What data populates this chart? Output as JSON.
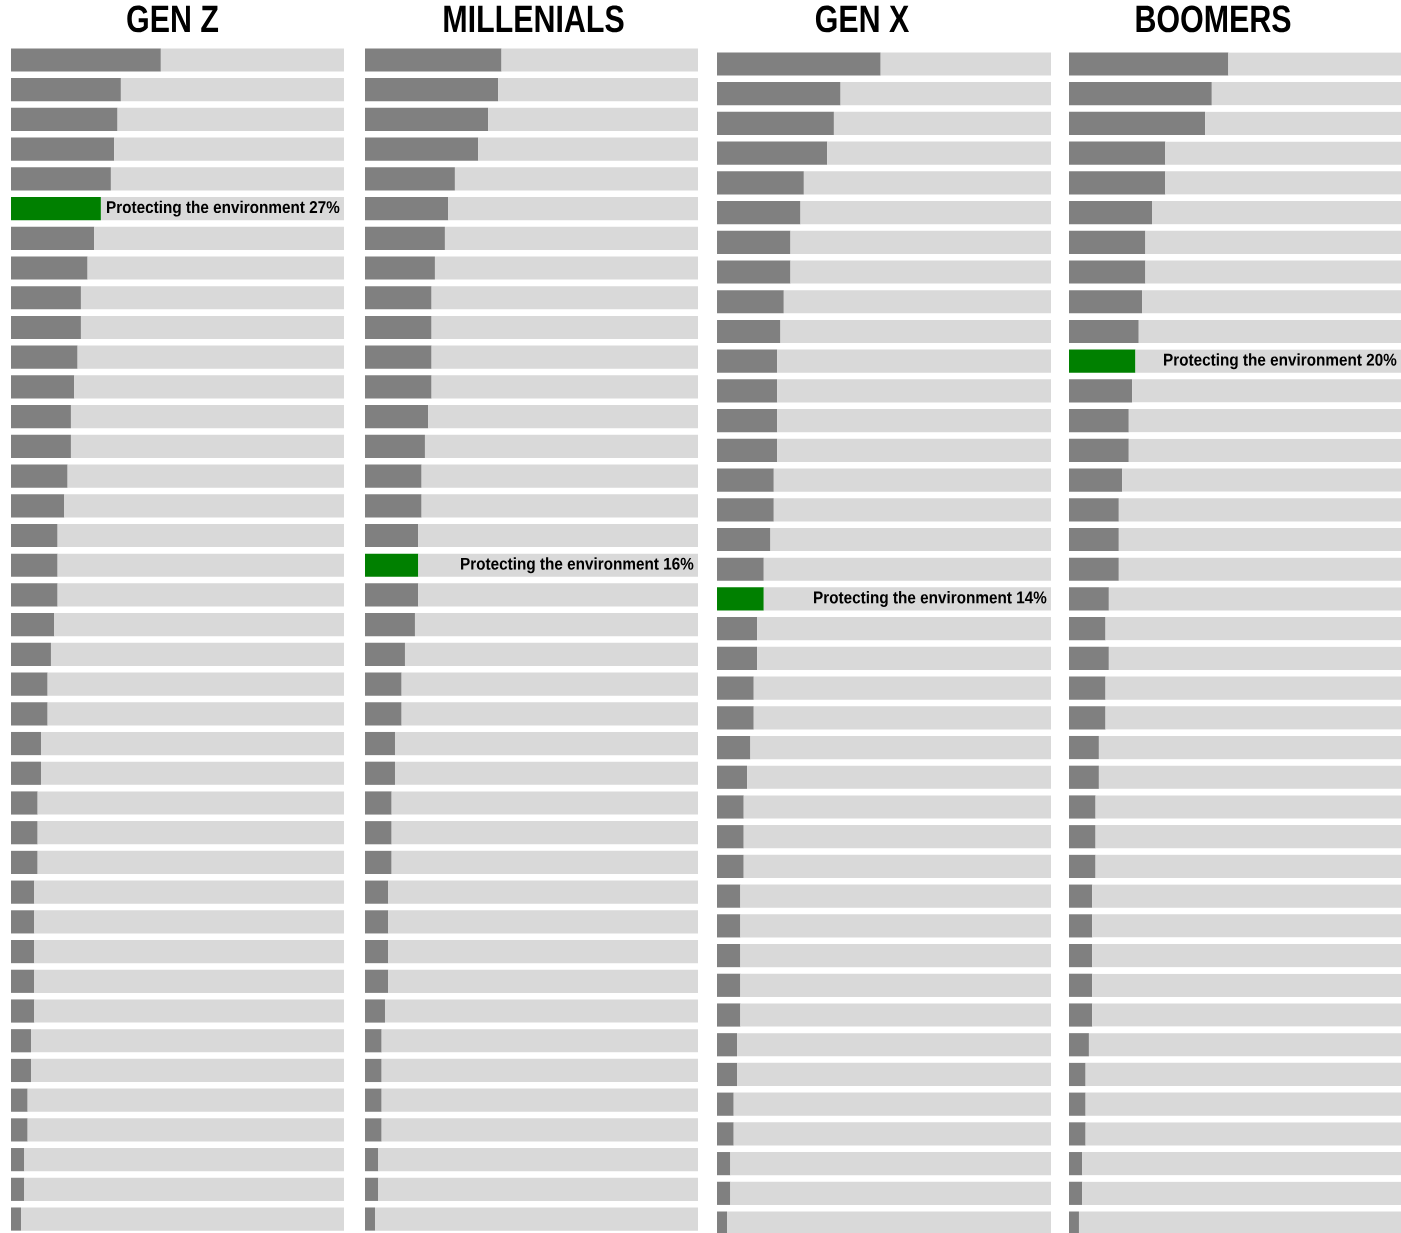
{
  "chart_data": [
    {
      "type": "bar",
      "orientation": "horizontal",
      "stacked": true,
      "title": "GEN Z",
      "xlim": [
        0,
        100
      ],
      "tick_labels": false,
      "categories": [
        null,
        null,
        null,
        null,
        null,
        null,
        null,
        null,
        null,
        null,
        null,
        null,
        null,
        null,
        null,
        null,
        null,
        null,
        null,
        null,
        null,
        null,
        null,
        null,
        null,
        null,
        null,
        null,
        null,
        null,
        null,
        null,
        null,
        null,
        null,
        null,
        null,
        null,
        null,
        null
      ],
      "series": [
        {
          "colors": [
            "#808080",
            "#808080",
            "#808080",
            "#808080",
            "#808080",
            "#008000",
            "#808080",
            "#808080",
            "#808080",
            "#808080",
            "#808080",
            "#808080",
            "#808080",
            "#808080",
            "#808080",
            "#808080",
            "#808080",
            "#808080",
            "#808080",
            "#808080",
            "#808080",
            "#808080",
            "#808080",
            "#808080",
            "#808080",
            "#808080",
            "#808080",
            "#808080",
            "#808080",
            "#808080",
            "#808080",
            "#808080",
            "#808080",
            "#808080",
            "#808080",
            "#808080",
            "#808080",
            "#808080",
            "#808080",
            "#808080"
          ],
          "values": [
            45,
            33,
            32,
            31,
            30,
            27,
            25,
            23,
            21,
            21,
            20,
            19,
            18,
            18,
            17,
            16,
            14,
            14,
            14,
            13,
            12,
            11,
            11,
            9,
            9,
            8,
            8,
            8,
            7,
            7,
            7,
            7,
            7,
            6,
            6,
            5,
            5,
            4,
            4,
            3
          ],
          "value_labels": [
            null,
            null,
            null,
            null,
            null,
            "Protecting the environment 27%",
            null,
            null,
            null,
            null,
            null,
            null,
            null,
            null,
            null,
            null,
            null,
            null,
            null,
            null,
            null,
            null,
            null,
            null,
            null,
            null,
            null,
            null,
            null,
            null,
            null,
            null,
            null,
            null,
            null,
            null,
            null,
            null,
            null,
            null
          ]
        },
        {
          "color": "#d9d9d9",
          "values": [
            55,
            67,
            68,
            69,
            70,
            73,
            75,
            77,
            79,
            79,
            80,
            81,
            82,
            82,
            83,
            84,
            86,
            86,
            86,
            87,
            88,
            89,
            89,
            91,
            91,
            92,
            92,
            92,
            93,
            93,
            93,
            93,
            93,
            94,
            94,
            95,
            95,
            96,
            96,
            97
          ]
        }
      ]
    },
    {
      "type": "bar",
      "orientation": "horizontal",
      "stacked": true,
      "title": "MILLENIALS",
      "xlim": [
        0,
        100
      ],
      "tick_labels": false,
      "categories": [
        null,
        null,
        null,
        null,
        null,
        null,
        null,
        null,
        null,
        null,
        null,
        null,
        null,
        null,
        null,
        null,
        null,
        null,
        null,
        null,
        null,
        null,
        null,
        null,
        null,
        null,
        null,
        null,
        null,
        null,
        null,
        null,
        null,
        null,
        null,
        null,
        null,
        null,
        null,
        null
      ],
      "series": [
        {
          "colors": [
            "#808080",
            "#808080",
            "#808080",
            "#808080",
            "#808080",
            "#808080",
            "#808080",
            "#808080",
            "#808080",
            "#808080",
            "#808080",
            "#808080",
            "#808080",
            "#808080",
            "#808080",
            "#808080",
            "#808080",
            "#008000",
            "#808080",
            "#808080",
            "#808080",
            "#808080",
            "#808080",
            "#808080",
            "#808080",
            "#808080",
            "#808080",
            "#808080",
            "#808080",
            "#808080",
            "#808080",
            "#808080",
            "#808080",
            "#808080",
            "#808080",
            "#808080",
            "#808080",
            "#808080",
            "#808080",
            "#808080"
          ],
          "values": [
            41,
            40,
            37,
            34,
            27,
            25,
            24,
            21,
            20,
            20,
            20,
            20,
            19,
            18,
            17,
            17,
            16,
            16,
            16,
            15,
            12,
            11,
            11,
            9,
            9,
            8,
            8,
            8,
            7,
            7,
            7,
            7,
            6,
            5,
            5,
            5,
            5,
            4,
            4,
            3
          ],
          "value_labels": [
            null,
            null,
            null,
            null,
            null,
            null,
            null,
            null,
            null,
            null,
            null,
            null,
            null,
            null,
            null,
            null,
            null,
            "Protecting the environment 16%",
            null,
            null,
            null,
            null,
            null,
            null,
            null,
            null,
            null,
            null,
            null,
            null,
            null,
            null,
            null,
            null,
            null,
            null,
            null,
            null,
            null,
            null
          ]
        },
        {
          "color": "#d9d9d9",
          "values": [
            59,
            60,
            63,
            66,
            73,
            75,
            76,
            79,
            80,
            80,
            80,
            80,
            81,
            82,
            83,
            83,
            84,
            84,
            84,
            85,
            88,
            89,
            89,
            91,
            91,
            92,
            92,
            92,
            93,
            93,
            93,
            93,
            94,
            95,
            95,
            95,
            95,
            96,
            96,
            97
          ]
        }
      ]
    },
    {
      "type": "bar",
      "orientation": "horizontal",
      "stacked": true,
      "title": "GEN X",
      "xlim": [
        0,
        100
      ],
      "tick_labels": false,
      "categories": [
        null,
        null,
        null,
        null,
        null,
        null,
        null,
        null,
        null,
        null,
        null,
        null,
        null,
        null,
        null,
        null,
        null,
        null,
        null,
        null,
        null,
        null,
        null,
        null,
        null,
        null,
        null,
        null,
        null,
        null,
        null,
        null,
        null,
        null,
        null,
        null,
        null,
        null,
        null,
        null
      ],
      "series": [
        {
          "colors": [
            "#808080",
            "#808080",
            "#808080",
            "#808080",
            "#808080",
            "#808080",
            "#808080",
            "#808080",
            "#808080",
            "#808080",
            "#808080",
            "#808080",
            "#808080",
            "#808080",
            "#808080",
            "#808080",
            "#808080",
            "#808080",
            "#008000",
            "#808080",
            "#808080",
            "#808080",
            "#808080",
            "#808080",
            "#808080",
            "#808080",
            "#808080",
            "#808080",
            "#808080",
            "#808080",
            "#808080",
            "#808080",
            "#808080",
            "#808080",
            "#808080",
            "#808080",
            "#808080",
            "#808080",
            "#808080",
            "#808080"
          ],
          "values": [
            49,
            37,
            35,
            33,
            26,
            25,
            22,
            22,
            20,
            19,
            18,
            18,
            18,
            18,
            17,
            17,
            16,
            14,
            14,
            12,
            12,
            11,
            11,
            10,
            9,
            8,
            8,
            8,
            7,
            7,
            7,
            7,
            7,
            6,
            6,
            5,
            5,
            4,
            4,
            3
          ],
          "value_labels": [
            null,
            null,
            null,
            null,
            null,
            null,
            null,
            null,
            null,
            null,
            null,
            null,
            null,
            null,
            null,
            null,
            null,
            null,
            "Protecting the environment 14%",
            null,
            null,
            null,
            null,
            null,
            null,
            null,
            null,
            null,
            null,
            null,
            null,
            null,
            null,
            null,
            null,
            null,
            null,
            null,
            null,
            null
          ]
        },
        {
          "color": "#d9d9d9",
          "values": [
            51,
            63,
            65,
            67,
            74,
            75,
            78,
            78,
            80,
            81,
            82,
            82,
            82,
            82,
            83,
            83,
            84,
            86,
            86,
            88,
            88,
            89,
            89,
            90,
            91,
            92,
            92,
            92,
            93,
            93,
            93,
            93,
            93,
            94,
            94,
            95,
            95,
            96,
            96,
            97
          ]
        }
      ]
    },
    {
      "type": "bar",
      "orientation": "horizontal",
      "stacked": true,
      "title": "BOOMERS",
      "xlim": [
        0,
        100
      ],
      "tick_labels": false,
      "categories": [
        null,
        null,
        null,
        null,
        null,
        null,
        null,
        null,
        null,
        null,
        null,
        null,
        null,
        null,
        null,
        null,
        null,
        null,
        null,
        null,
        null,
        null,
        null,
        null,
        null,
        null,
        null,
        null,
        null,
        null,
        null,
        null,
        null,
        null,
        null,
        null,
        null,
        null,
        null,
        null
      ],
      "series": [
        {
          "colors": [
            "#808080",
            "#808080",
            "#808080",
            "#808080",
            "#808080",
            "#808080",
            "#808080",
            "#808080",
            "#808080",
            "#808080",
            "#008000",
            "#808080",
            "#808080",
            "#808080",
            "#808080",
            "#808080",
            "#808080",
            "#808080",
            "#808080",
            "#808080",
            "#808080",
            "#808080",
            "#808080",
            "#808080",
            "#808080",
            "#808080",
            "#808080",
            "#808080",
            "#808080",
            "#808080",
            "#808080",
            "#808080",
            "#808080",
            "#808080",
            "#808080",
            "#808080",
            "#808080",
            "#808080",
            "#808080",
            "#808080"
          ],
          "values": [
            48,
            43,
            41,
            29,
            29,
            25,
            23,
            23,
            22,
            21,
            20,
            19,
            18,
            18,
            16,
            15,
            15,
            15,
            12,
            11,
            12,
            11,
            11,
            9,
            9,
            8,
            8,
            8,
            7,
            7,
            7,
            7,
            7,
            6,
            5,
            5,
            5,
            4,
            4,
            3
          ],
          "value_labels": [
            null,
            null,
            null,
            null,
            null,
            null,
            null,
            null,
            null,
            null,
            "Protecting the environment 20%",
            null,
            null,
            null,
            null,
            null,
            null,
            null,
            null,
            null,
            null,
            null,
            null,
            null,
            null,
            null,
            null,
            null,
            null,
            null,
            null,
            null,
            null,
            null,
            null,
            null,
            null,
            null,
            null,
            null
          ]
        },
        {
          "color": "#d9d9d9",
          "values": [
            52,
            57,
            59,
            71,
            71,
            75,
            77,
            77,
            78,
            79,
            80,
            81,
            82,
            82,
            84,
            85,
            85,
            85,
            88,
            89,
            88,
            89,
            89,
            91,
            91,
            92,
            92,
            92,
            93,
            93,
            93,
            93,
            93,
            94,
            95,
            95,
            95,
            96,
            96,
            97
          ]
        }
      ]
    }
  ]
}
